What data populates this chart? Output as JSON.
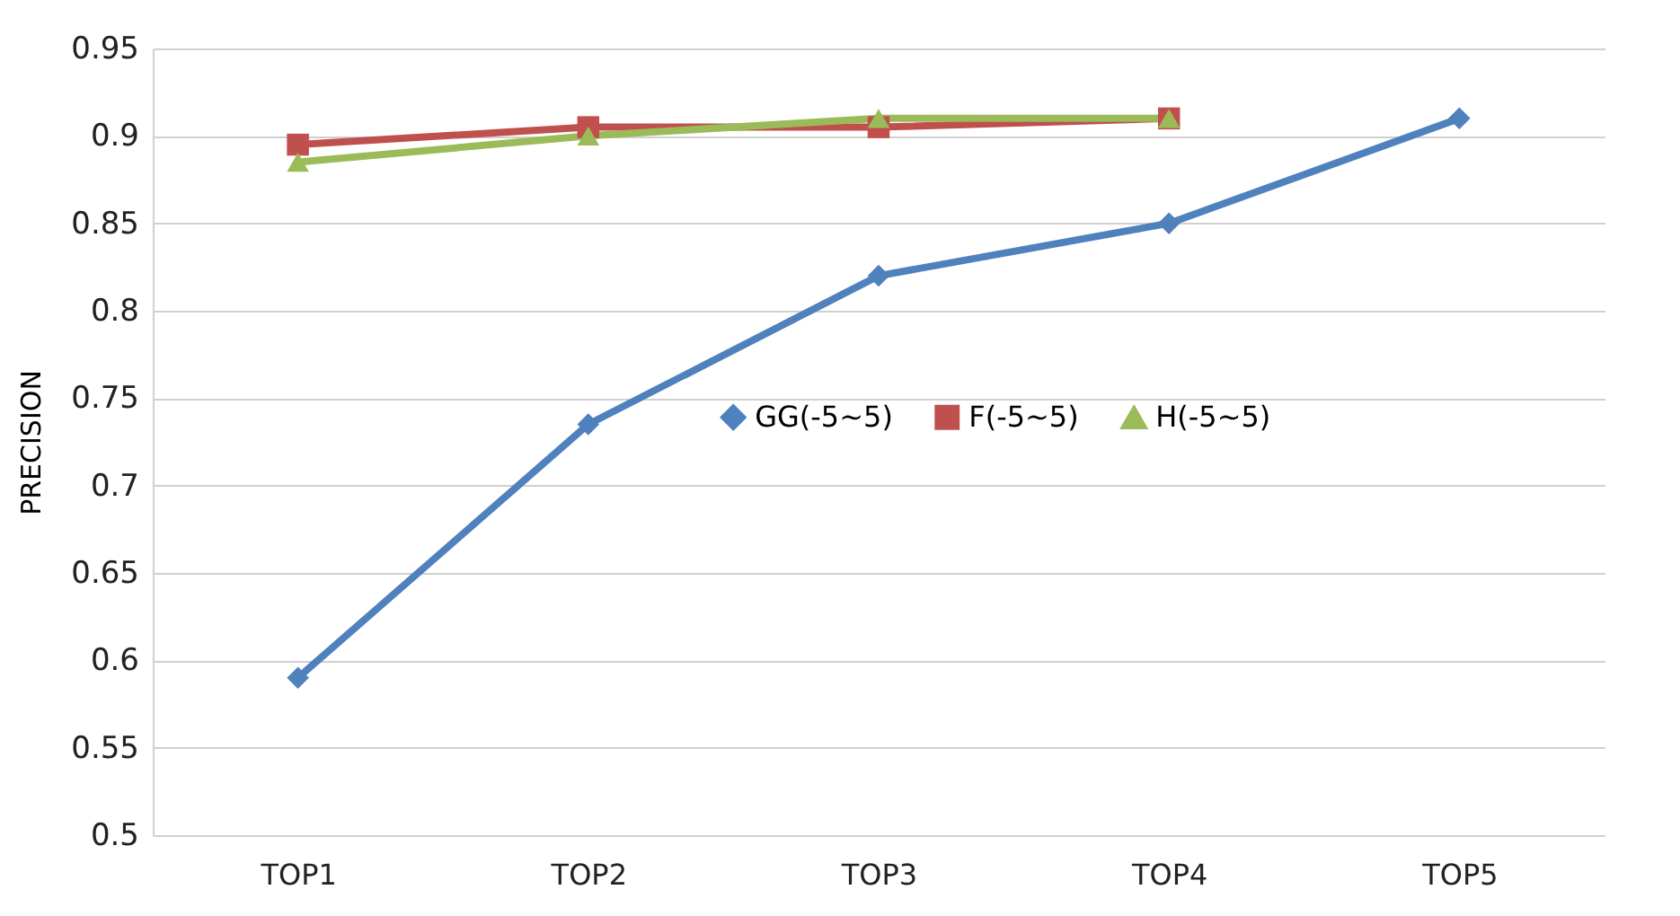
{
  "chart_data": {
    "type": "line",
    "ylabel": "PRECISION",
    "categories": [
      "TOP1",
      "TOP2",
      "TOP3",
      "TOP4",
      "TOP5"
    ],
    "series": [
      {
        "name": "GG(-5~5)",
        "color": "#4f81bd",
        "marker": "diamond",
        "values": [
          0.59,
          0.735,
          0.82,
          0.85,
          0.91
        ]
      },
      {
        "name": "F(-5~5)",
        "color": "#c0504d",
        "marker": "square",
        "values": [
          0.895,
          0.905,
          0.905,
          0.91,
          null
        ]
      },
      {
        "name": "H(-5~5)",
        "color": "#9bbb59",
        "marker": "triangle",
        "values": [
          0.885,
          0.9,
          0.91,
          0.91,
          null
        ]
      }
    ],
    "ylim": [
      0.5,
      0.95
    ],
    "yticks": [
      0.5,
      0.55,
      0.6,
      0.65,
      0.7,
      0.75,
      0.8,
      0.85,
      0.9,
      0.95
    ],
    "grid": "y",
    "legend": "right",
    "line_style": "solid"
  }
}
